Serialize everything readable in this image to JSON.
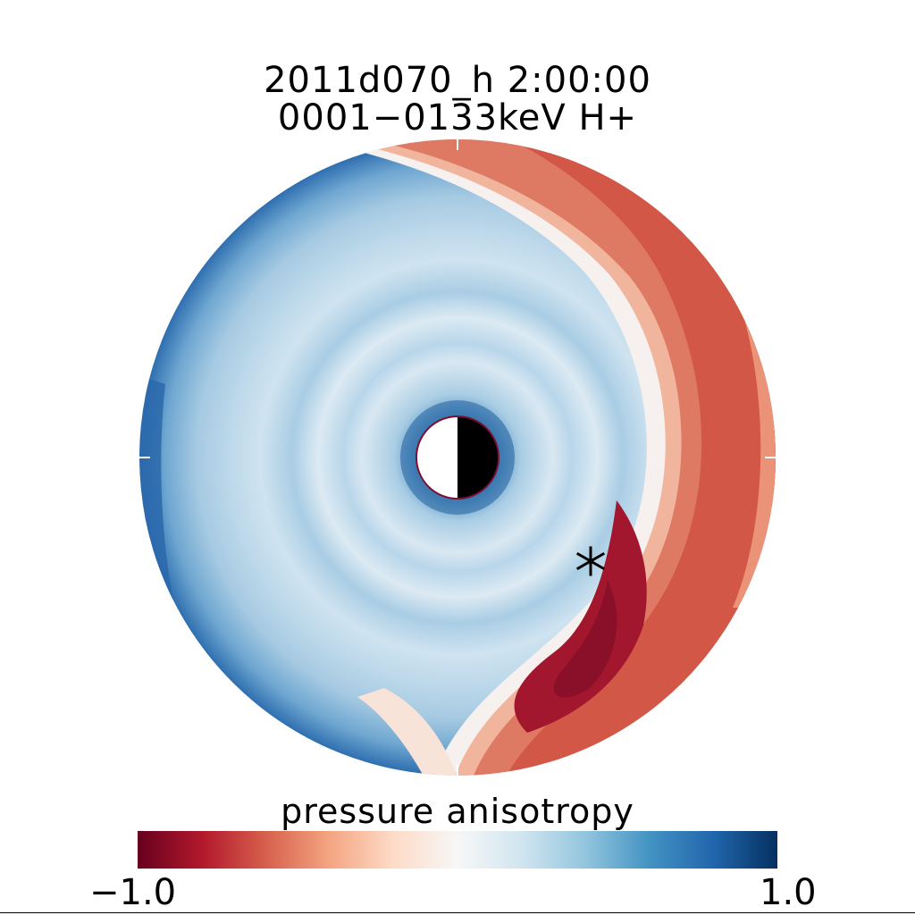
{
  "title": {
    "line1": "2011d070_h    2:00:00",
    "line2": "0001−0133keV H+"
  },
  "colorbar": {
    "label": "pressure anisotropy",
    "min_label": "−1.0",
    "max_label": "1.0",
    "min": -1.0,
    "max": 1.0,
    "stops": [
      "#67001f",
      "#b2182b",
      "#d6604d",
      "#f4a582",
      "#fddbc7",
      "#f7f7f7",
      "#d1e5f0",
      "#92c5de",
      "#4393c3",
      "#2166ac",
      "#053061"
    ]
  },
  "colors": {
    "deep_red": "#9e1a2c",
    "red": "#c8413c",
    "salmon": "#e07a62",
    "light_salmon": "#f3b9a0",
    "near_white": "#f4f1f0",
    "pale_blue": "#d9e8f2",
    "light_blue": "#a9cde4",
    "mid_blue": "#5d9ccb",
    "deep_blue": "#2a69ac",
    "planet_outline": "#7b1030"
  },
  "icons": {
    "marker": "asterisk-marker",
    "planet": "half-lit-planet"
  }
}
